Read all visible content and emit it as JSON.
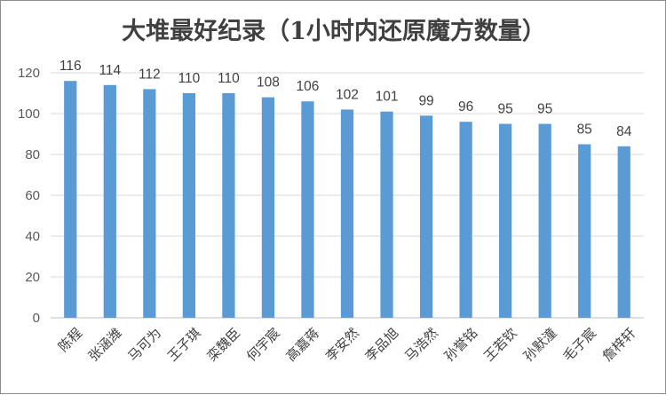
{
  "chart_data": {
    "type": "bar",
    "title": "大堆最好纪录（1小时内还原魔方数量）",
    "xlabel": "",
    "ylabel": "",
    "ylim": [
      0,
      120
    ],
    "ytick_step": 20,
    "y_ticks": [
      "0",
      "20",
      "40",
      "60",
      "80",
      "100",
      "120"
    ],
    "grid": true,
    "legend": "none",
    "bar_color": "#5B9BD5",
    "categories": [
      "陈程",
      "张涵潍",
      "马可为",
      "王子琪",
      "栾魏臣",
      "何宇宸",
      "高嘉蒋",
      "李安然",
      "李品旭",
      "马浩然",
      "孙誉铭",
      "王若钦",
      "孙默潼",
      "毛子宸",
      "詹梓轩"
    ],
    "values": [
      116,
      114,
      112,
      110,
      110,
      108,
      106,
      102,
      101,
      99,
      96,
      95,
      95,
      85,
      84
    ],
    "data_labels": [
      "116",
      "114",
      "112",
      "110",
      "110",
      "108",
      "106",
      "102",
      "101",
      "99",
      "96",
      "95",
      "95",
      "85",
      "84"
    ]
  }
}
